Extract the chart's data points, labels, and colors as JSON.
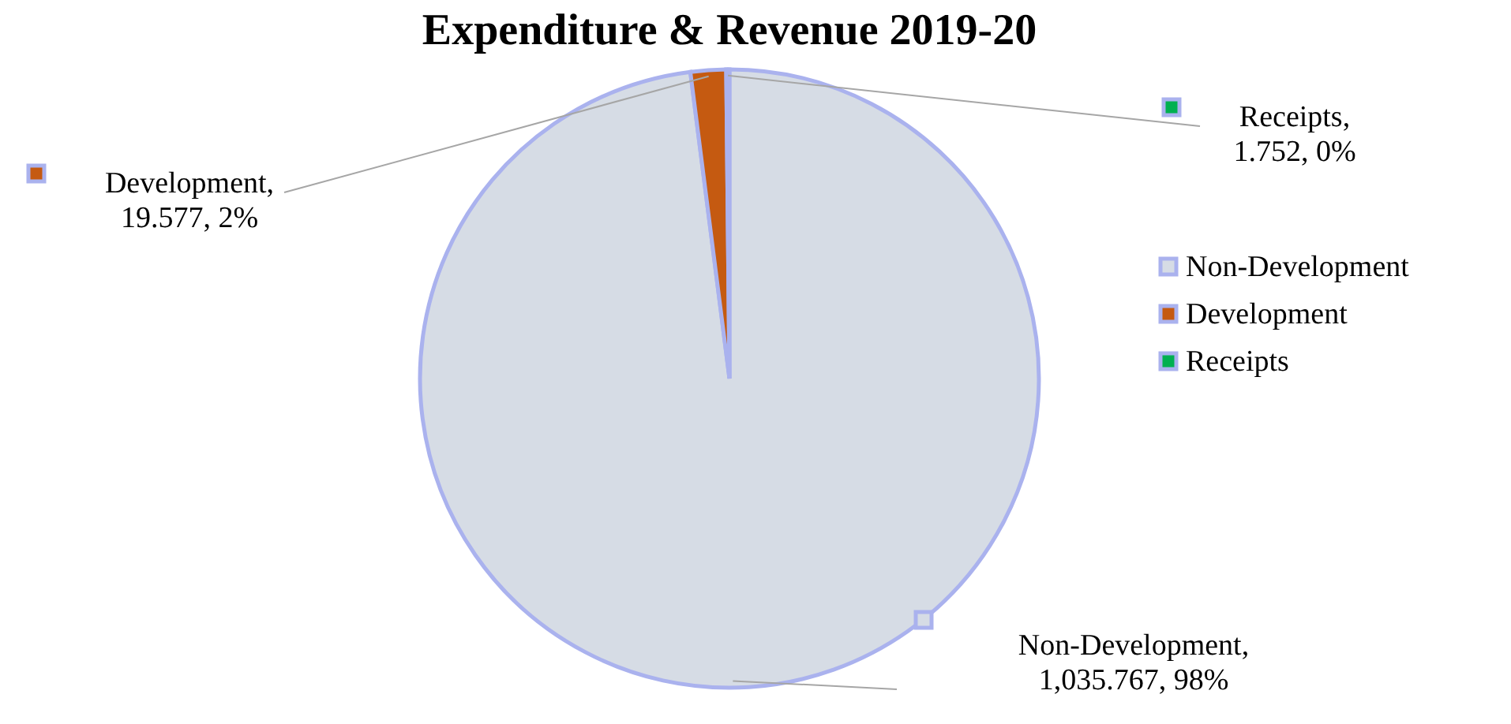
{
  "chart_data": {
    "type": "pie",
    "title": "Expenditure & Revenue 2019-20",
    "categories": [
      "Non-Development",
      "Development",
      "Receipts"
    ],
    "values": [
      1035.767,
      19.577,
      1.752
    ],
    "colors": [
      "#d6dce5",
      "#c55a11",
      "#00b050"
    ],
    "value_labels": [
      "Non-Development, 1,035.767, 98%",
      "Development, 19.577, 2%",
      "Receipts, 1.752, 0%"
    ],
    "legend": "right"
  }
}
